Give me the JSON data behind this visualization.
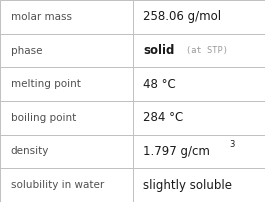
{
  "rows": [
    {
      "label": "molar mass",
      "value_parts": [
        {
          "text": "258.06 g/mol",
          "style": "normal"
        }
      ]
    },
    {
      "label": "phase",
      "value_parts": [
        {
          "text": "solid",
          "style": "bold"
        },
        {
          "text": " (at STP)",
          "style": "small_gray"
        }
      ]
    },
    {
      "label": "melting point",
      "value_parts": [
        {
          "text": "48 °C",
          "style": "normal"
        }
      ]
    },
    {
      "label": "boiling point",
      "value_parts": [
        {
          "text": "284 °C",
          "style": "normal"
        }
      ]
    },
    {
      "label": "density",
      "value_parts": [
        {
          "text": "1.797 g/cm",
          "style": "normal"
        },
        {
          "text": "3",
          "style": "superscript"
        }
      ]
    },
    {
      "label": "solubility in water",
      "value_parts": [
        {
          "text": "slightly soluble",
          "style": "normal"
        }
      ]
    }
  ],
  "col_split": 0.5,
  "border_color": "#c0c0c0",
  "bg_color": "#ffffff",
  "label_color": "#505050",
  "value_color": "#1a1a1a",
  "gray_color": "#999999",
  "label_fontsize": 7.5,
  "value_fontsize": 8.5,
  "small_fontsize": 6.2,
  "super_fontsize": 6.0,
  "font_family": "DejaVu Sans"
}
